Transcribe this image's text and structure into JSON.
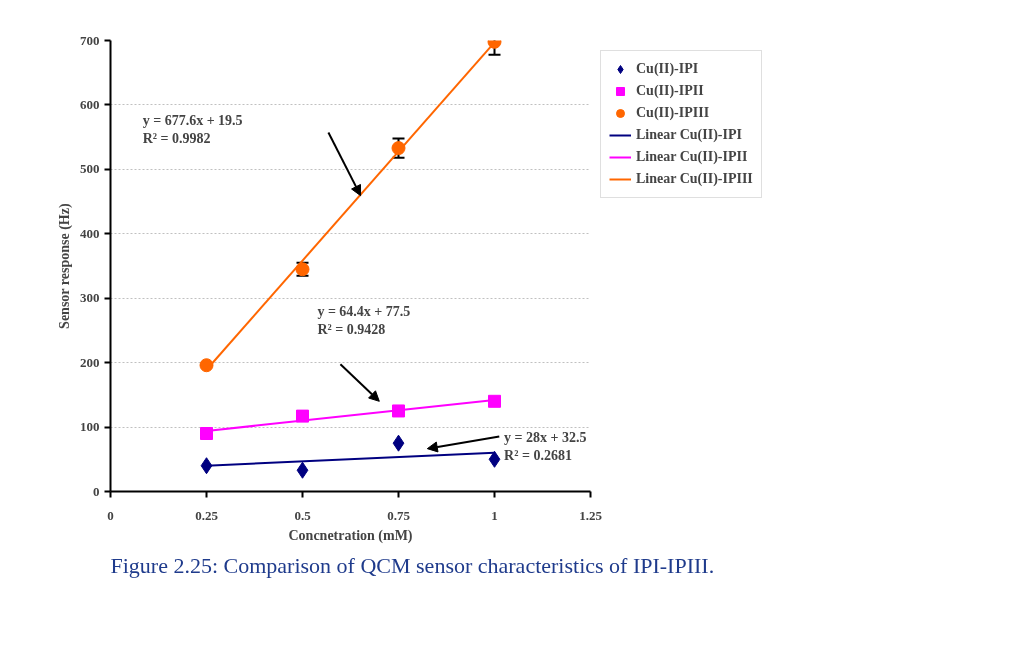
{
  "chart_data": {
    "type": "scatter",
    "xlabel": "Concnetration (mM)",
    "ylabel": "Sensor response (Hz)",
    "xlim": [
      0,
      1.25
    ],
    "xticks": [
      0,
      0.25,
      0.5,
      0.75,
      1,
      1.25
    ],
    "ylim": [
      0,
      700
    ],
    "yticks": [
      0,
      100,
      200,
      300,
      400,
      500,
      600,
      700
    ],
    "grid": "y",
    "legend": "right",
    "series": [
      {
        "name": "Cu(II)-IPI",
        "marker": "diamond",
        "color": "#000080",
        "x": [
          0.25,
          0.5,
          0.75,
          1
        ],
        "values": [
          40,
          33,
          75,
          50
        ]
      },
      {
        "name": "Cu(II)-IPII",
        "marker": "square",
        "color": "#ff00ff",
        "x": [
          0.25,
          0.5,
          0.75,
          1
        ],
        "values": [
          90,
          117,
          125,
          140
        ]
      },
      {
        "name": "Cu(II)-IPIII",
        "marker": "circle",
        "color": "#ff6600",
        "x": [
          0.25,
          0.5,
          0.75,
          1
        ],
        "values": [
          196,
          345,
          533,
          698
        ],
        "errors": [
          null,
          10,
          15,
          20
        ]
      },
      {
        "name": "Linear Cu(II)-IPI",
        "type": "line",
        "line_style": "solid",
        "color": "#000080",
        "x": [
          0.25,
          1
        ],
        "values": [
          40,
          60
        ]
      },
      {
        "name": "Linear Cu(II)-IPII",
        "type": "line",
        "line_style": "solid",
        "color": "#ff00ff",
        "x": [
          0.25,
          1
        ],
        "values": [
          94,
          142
        ]
      },
      {
        "name": "Linear Cu(II)-IPIII",
        "type": "line",
        "line_style": "solid",
        "color": "#ff6600",
        "x": [
          0.25,
          1
        ],
        "values": [
          189,
          697
        ]
      }
    ],
    "annotations": [
      "y = 677.6x + 19.5\nR² = 0.9982",
      "y = 64.4x + 77.5\nR² = 0.9428",
      "y = 28x + 32.5\nR² = 0.2681",
      "Figure 2.25: Comparison of QCM sensor characteristics of IPI-IPIII."
    ]
  }
}
